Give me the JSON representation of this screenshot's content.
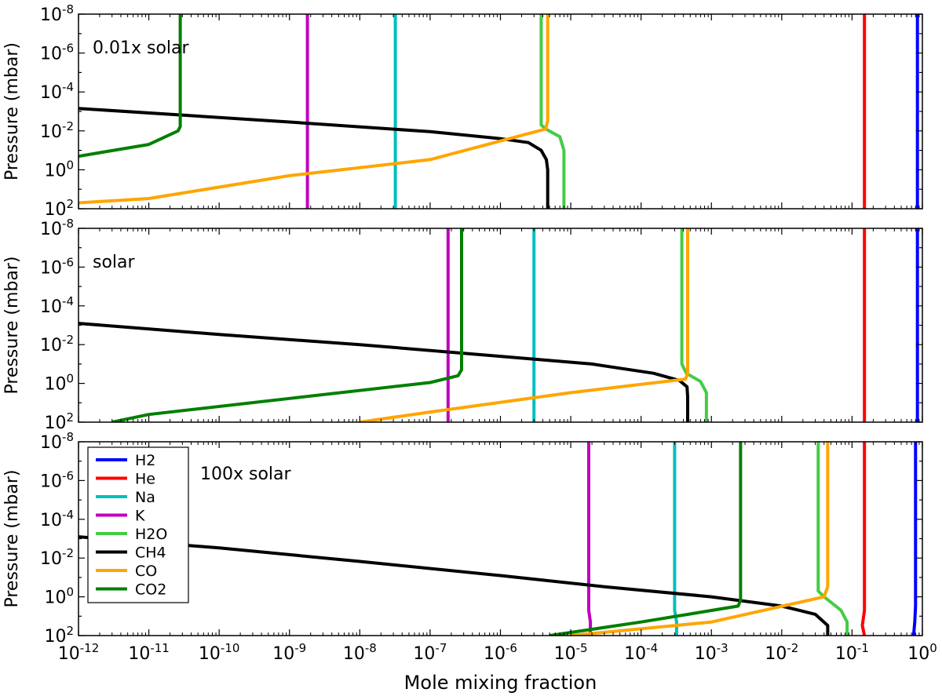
{
  "chart_data": [
    {
      "type": "line",
      "annotation": "0.01x solar",
      "ylabel": "Pressure (mbar)",
      "xlabel": "Mole mixing fraction",
      "xscale": "log",
      "yscale": "log",
      "y_inverted": true,
      "xlim": [
        1e-12,
        1
      ],
      "ylim": [
        100,
        1e-08
      ],
      "series": [
        {
          "name": "H2",
          "color": "#0000ff",
          "x": [
            0.85,
            0.85
          ],
          "y": [
            1e-08,
            100
          ]
        },
        {
          "name": "He",
          "color": "#ff0000",
          "x": [
            0.15,
            0.15
          ],
          "y": [
            1e-08,
            100
          ]
        },
        {
          "name": "Na",
          "color": "#00bfbf",
          "x": [
            3.2e-08,
            3.2e-08
          ],
          "y": [
            1e-08,
            100
          ]
        },
        {
          "name": "K",
          "color": "#bf00bf",
          "x": [
            1.8e-09,
            1.8e-09
          ],
          "y": [
            1e-08,
            100
          ]
        },
        {
          "name": "H2O",
          "color": "#44cc44",
          "x": [
            3.8e-06,
            3.8e-06,
            4.4e-06,
            7e-06,
            8e-06,
            8e-06
          ],
          "y": [
            1e-08,
            0.005,
            0.008,
            0.02,
            0.1,
            100
          ]
        },
        {
          "name": "CH4",
          "color": "#000000",
          "x": [
            1e-12,
            1e-09,
            1e-07,
            1e-06,
            2.5e-06,
            3.8e-06,
            4.5e-06,
            4.7e-06,
            4.7e-06
          ],
          "y": [
            0.0007,
            0.0035,
            0.011,
            0.025,
            0.04,
            0.1,
            0.3,
            1,
            100
          ]
        },
        {
          "name": "CO",
          "color": "#ffa500",
          "x": [
            4.7e-06,
            4.7e-06,
            4.4e-06,
            1e-07,
            1e-09,
            1e-11,
            1e-12
          ],
          "y": [
            1e-08,
            0.003,
            0.008,
            0.3,
            2,
            30,
            50
          ]
        },
        {
          "name": "CO2",
          "color": "#007f00",
          "x": [
            2.8e-11,
            2.8e-11,
            2.6e-11,
            1e-11,
            1e-12
          ],
          "y": [
            1e-08,
            0.006,
            0.01,
            0.05,
            0.2
          ]
        }
      ]
    },
    {
      "type": "line",
      "annotation": "solar",
      "ylabel": "Pressure (mbar)",
      "xlabel": "Mole mixing fraction",
      "xscale": "log",
      "yscale": "log",
      "y_inverted": true,
      "xlim": [
        1e-12,
        1
      ],
      "ylim": [
        100,
        1e-08
      ],
      "series": [
        {
          "name": "H2",
          "color": "#0000ff",
          "x": [
            0.85,
            0.85
          ],
          "y": [
            1e-08,
            100
          ]
        },
        {
          "name": "He",
          "color": "#ff0000",
          "x": [
            0.15,
            0.15
          ],
          "y": [
            1e-08,
            100
          ]
        },
        {
          "name": "Na",
          "color": "#00bfbf",
          "x": [
            3e-06,
            3e-06
          ],
          "y": [
            1e-08,
            100
          ]
        },
        {
          "name": "K",
          "color": "#bf00bf",
          "x": [
            1.8e-07,
            1.8e-07
          ],
          "y": [
            1e-08,
            100
          ]
        },
        {
          "name": "H2O",
          "color": "#44cc44",
          "x": [
            0.00038,
            0.00038,
            0.00044,
            0.0007,
            0.00085,
            0.00085
          ],
          "y": [
            1e-08,
            0.1,
            0.3,
            0.8,
            3,
            100
          ]
        },
        {
          "name": "CH4",
          "color": "#000000",
          "x": [
            1e-12,
            1e-10,
            1e-08,
            1e-06,
            2e-05,
            0.00015,
            0.00035,
            0.00045,
            0.00046,
            0.00046
          ],
          "y": [
            0.0008,
            0.003,
            0.01,
            0.04,
            0.1,
            0.3,
            0.7,
            1.5,
            5,
            100
          ]
        },
        {
          "name": "CO",
          "color": "#ffa500",
          "x": [
            0.00046,
            0.00046,
            0.00043,
            1e-05,
            1e-07,
            1e-08
          ],
          "y": [
            1e-08,
            0.3,
            0.6,
            3,
            30,
            100
          ]
        },
        {
          "name": "CO2",
          "color": "#007f00",
          "x": [
            2.8e-07,
            2.8e-07,
            2.5e-07,
            1e-07,
            1e-09,
            1e-11,
            3e-12
          ],
          "y": [
            1e-08,
            0.2,
            0.4,
            0.9,
            6,
            40,
            100
          ]
        }
      ]
    },
    {
      "type": "line",
      "annotation": "100x solar",
      "ylabel": "Pressure (mbar)",
      "xlabel": "Mole mixing fraction",
      "xscale": "log",
      "yscale": "log",
      "y_inverted": true,
      "xlim": [
        1e-12,
        1
      ],
      "ylim": [
        100,
        1e-08
      ],
      "legend": {
        "position": "left",
        "entries": [
          "H2",
          "He",
          "Na",
          "K",
          "H2O",
          "CH4",
          "CO",
          "CO2"
        ]
      },
      "series": [
        {
          "name": "H2",
          "color": "#0000ff",
          "x": [
            0.8,
            0.8,
            0.78,
            0.75
          ],
          "y": [
            1e-08,
            3,
            20,
            100
          ]
        },
        {
          "name": "He",
          "color": "#ff0000",
          "x": [
            0.15,
            0.15,
            0.14,
            0.15
          ],
          "y": [
            1e-08,
            5,
            30,
            100
          ]
        },
        {
          "name": "Na",
          "color": "#00bfbf",
          "x": [
            0.0003,
            0.0003,
            0.00032,
            0.00032
          ],
          "y": [
            1e-08,
            5,
            20,
            100
          ]
        },
        {
          "name": "K",
          "color": "#bf00bf",
          "x": [
            1.8e-05,
            1.8e-05,
            1.9e-05,
            1.9e-05
          ],
          "y": [
            1e-08,
            5,
            20,
            100
          ]
        },
        {
          "name": "H2O",
          "color": "#44cc44",
          "x": [
            0.033,
            0.033,
            0.04,
            0.07,
            0.085,
            0.085
          ],
          "y": [
            1e-08,
            0.5,
            1,
            5,
            20,
            100
          ]
        },
        {
          "name": "CH4",
          "color": "#000000",
          "x": [
            1e-12,
            1e-10,
            1e-08,
            1e-06,
            3e-05,
            0.001,
            0.01,
            0.03,
            0.045,
            0.045
          ],
          "y": [
            0.0008,
            0.003,
            0.015,
            0.08,
            0.3,
            1,
            3,
            8,
            30,
            100
          ]
        },
        {
          "name": "CO",
          "color": "#ffa500",
          "x": [
            0.045,
            0.045,
            0.04,
            0.001,
            1e-05
          ],
          "y": [
            1e-08,
            0.3,
            1,
            20,
            100
          ]
        },
        {
          "name": "CO2",
          "color": "#007f00",
          "x": [
            0.0026,
            0.0026,
            0.0024,
            0.0001,
            5e-06
          ],
          "y": [
            1e-08,
            1.5,
            3,
            20,
            100
          ]
        }
      ]
    }
  ]
}
